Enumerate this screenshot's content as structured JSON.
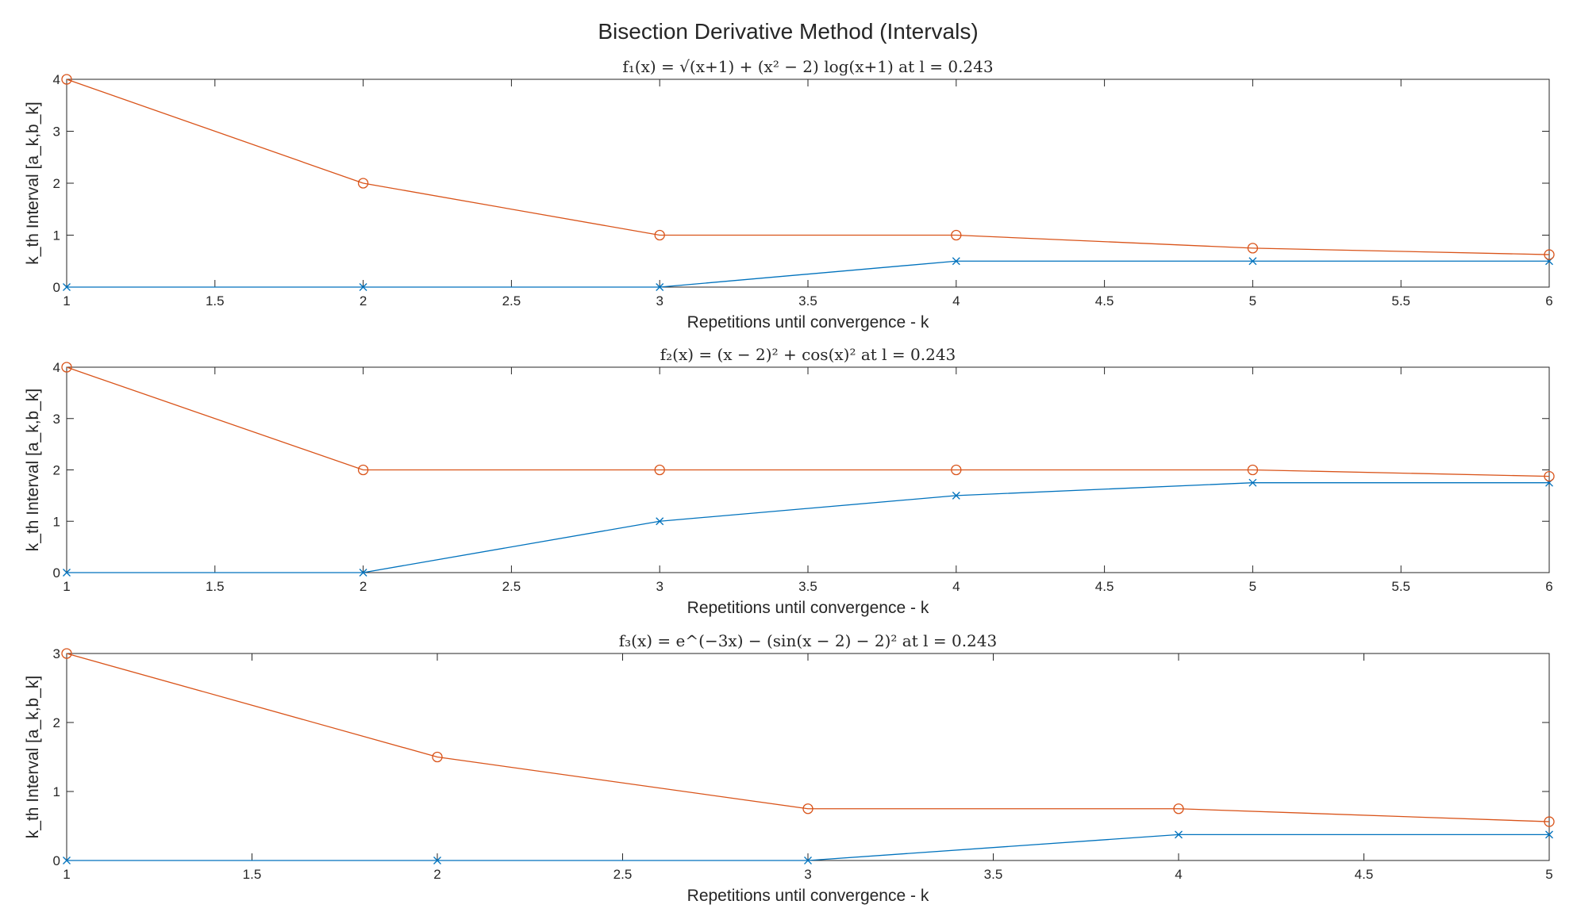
{
  "figure": {
    "title": "Bisection Derivative Method (Intervals)"
  },
  "colors": {
    "a_series": "#0072BD",
    "b_series": "#D95319",
    "axis": "#262626",
    "background": "#ffffff"
  },
  "chart_data": [
    {
      "type": "line",
      "title": "f₁(x) = √(x+1) + (x² − 2) log(x+1) at l = 0.243",
      "xlabel": "Repetitions until convergence - k",
      "ylabel": "k_th Interval [a_k,b_k]",
      "xlim": [
        1,
        6
      ],
      "ylim": [
        0,
        4
      ],
      "xticks": [
        1,
        1.5,
        2,
        2.5,
        3,
        3.5,
        4,
        4.5,
        5,
        5.5,
        6
      ],
      "yticks": [
        0,
        1,
        2,
        3,
        4
      ],
      "grid": false,
      "x": [
        1,
        2,
        3,
        4,
        5,
        6
      ],
      "series": [
        {
          "marker": "x",
          "color": "#0072BD",
          "values": [
            0,
            0,
            0,
            0.5,
            0.5,
            0.5
          ]
        },
        {
          "marker": "o",
          "color": "#D95319",
          "values": [
            4,
            2,
            1,
            1,
            0.75,
            0.625
          ]
        }
      ]
    },
    {
      "type": "line",
      "title": "f₂(x) = (x − 2)² + cos(x)² at l = 0.243",
      "xlabel": "Repetitions until convergence - k",
      "ylabel": "k_th Interval [a_k,b_k]",
      "xlim": [
        1,
        6
      ],
      "ylim": [
        0,
        4
      ],
      "xticks": [
        1,
        1.5,
        2,
        2.5,
        3,
        3.5,
        4,
        4.5,
        5,
        5.5,
        6
      ],
      "yticks": [
        0,
        1,
        2,
        3,
        4
      ],
      "grid": false,
      "x": [
        1,
        2,
        3,
        4,
        5,
        6
      ],
      "series": [
        {
          "marker": "x",
          "color": "#0072BD",
          "values": [
            0,
            0,
            1,
            1.5,
            1.75,
            1.75
          ]
        },
        {
          "marker": "o",
          "color": "#D95319",
          "values": [
            4,
            2,
            2,
            2,
            2,
            1.875
          ]
        }
      ]
    },
    {
      "type": "line",
      "title": "f₃(x) = e^(−3x) − (sin(x − 2) − 2)² at l = 0.243",
      "xlabel": "Repetitions until convergence - k",
      "ylabel": "k_th Interval [a_k,b_k]",
      "xlim": [
        1,
        5
      ],
      "ylim": [
        0,
        3
      ],
      "xticks": [
        1,
        1.5,
        2,
        2.5,
        3,
        3.5,
        4,
        4.5,
        5
      ],
      "yticks": [
        0,
        1,
        2,
        3
      ],
      "grid": false,
      "x": [
        1,
        2,
        3,
        4,
        5
      ],
      "series": [
        {
          "marker": "x",
          "color": "#0072BD",
          "values": [
            0,
            0,
            0,
            0.375,
            0.375
          ]
        },
        {
          "marker": "o",
          "color": "#D95319",
          "values": [
            3,
            1.5,
            0.75,
            0.75,
            0.5625
          ]
        }
      ]
    }
  ]
}
